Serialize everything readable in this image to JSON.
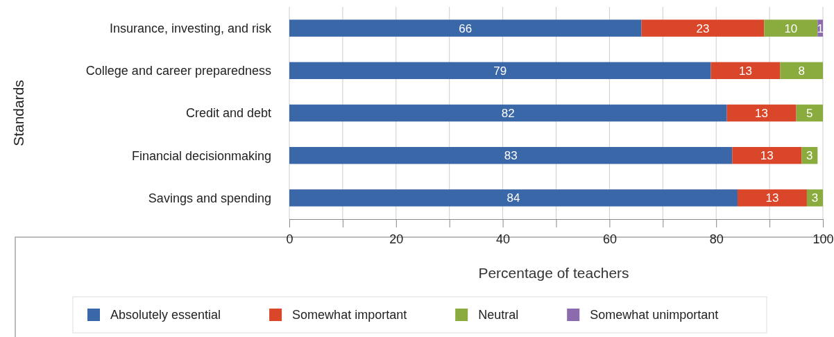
{
  "chart_data": {
    "type": "bar",
    "orientation": "horizontal",
    "stacked": true,
    "categories": [
      "Insurance, investing, and risk",
      "College and career preparedness",
      "Credit and debt",
      "Financial decisionmaking",
      "Savings and spending"
    ],
    "series": [
      {
        "name": "Absolutely essential",
        "color": "#3a67a8",
        "values": [
          66,
          79,
          82,
          83,
          84
        ]
      },
      {
        "name": "Somewhat important",
        "color": "#d9462a",
        "values": [
          23,
          13,
          13,
          13,
          13
        ]
      },
      {
        "name": "Neutral",
        "color": "#8aac3f",
        "values": [
          10,
          8,
          5,
          3,
          3
        ]
      },
      {
        "name": "Somewhat unimportant",
        "color": "#8b6bad",
        "values": [
          1,
          null,
          null,
          null,
          null
        ]
      }
    ],
    "xlim": [
      0,
      100
    ],
    "xticks": [
      0,
      {
        "value": 10,
        "label": null
      },
      20,
      {
        "value": 30,
        "label": null
      },
      40,
      {
        "value": 50,
        "label": null
      },
      60,
      {
        "value": 70,
        "label": null
      },
      80,
      {
        "value": 90,
        "label": null
      },
      100
    ],
    "xlabel": "Percentage of teachers",
    "ylabel": "Standards",
    "grid": "x",
    "data_labels": true,
    "legend": "bottom"
  }
}
